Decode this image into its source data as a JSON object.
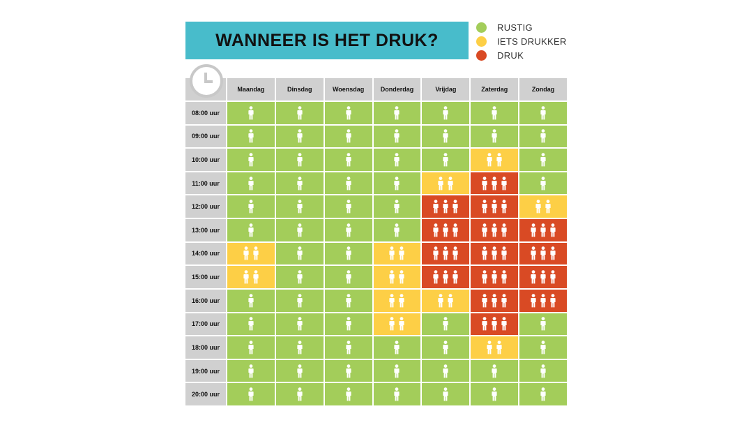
{
  "title": "WANNEER IS HET DRUK?",
  "legend": [
    {
      "label": "RUSTIG",
      "level": 1,
      "color": "#a3cd5a"
    },
    {
      "label": "IETS DRUKKER",
      "level": 2,
      "color": "#fdcf46"
    },
    {
      "label": "DRUK",
      "level": 3,
      "color": "#d94a24"
    }
  ],
  "icons": {
    "corner": "clock-icon",
    "cell": "person-icon"
  },
  "chart_data": {
    "type": "heatmap",
    "title": "WANNEER IS HET DRUK?",
    "x": [
      "Maandag",
      "Dinsdag",
      "Woensdag",
      "Donderdag",
      "Vrijdag",
      "Zaterdag",
      "Zondag"
    ],
    "y": [
      "08:00 uur",
      "09:00 uur",
      "10:00 uur",
      "11:00 uur",
      "12:00 uur",
      "13:00 uur",
      "14:00 uur",
      "15:00 uur",
      "16:00 uur",
      "17:00 uur",
      "18:00 uur",
      "19:00 uur",
      "20:00 uur"
    ],
    "levels": {
      "1": "RUSTIG",
      "2": "IETS DRUKKER",
      "3": "DRUK"
    },
    "values": [
      [
        1,
        1,
        1,
        1,
        1,
        1,
        1
      ],
      [
        1,
        1,
        1,
        1,
        1,
        1,
        1
      ],
      [
        1,
        1,
        1,
        1,
        1,
        2,
        1
      ],
      [
        1,
        1,
        1,
        1,
        2,
        3,
        1
      ],
      [
        1,
        1,
        1,
        1,
        3,
        3,
        2
      ],
      [
        1,
        1,
        1,
        1,
        3,
        3,
        3
      ],
      [
        2,
        1,
        1,
        2,
        3,
        3,
        3
      ],
      [
        2,
        1,
        1,
        2,
        3,
        3,
        3
      ],
      [
        1,
        1,
        1,
        2,
        2,
        3,
        3
      ],
      [
        1,
        1,
        1,
        2,
        1,
        3,
        1
      ],
      [
        1,
        1,
        1,
        1,
        1,
        2,
        1
      ],
      [
        1,
        1,
        1,
        1,
        1,
        1,
        1
      ],
      [
        1,
        1,
        1,
        1,
        1,
        1,
        1
      ]
    ]
  }
}
